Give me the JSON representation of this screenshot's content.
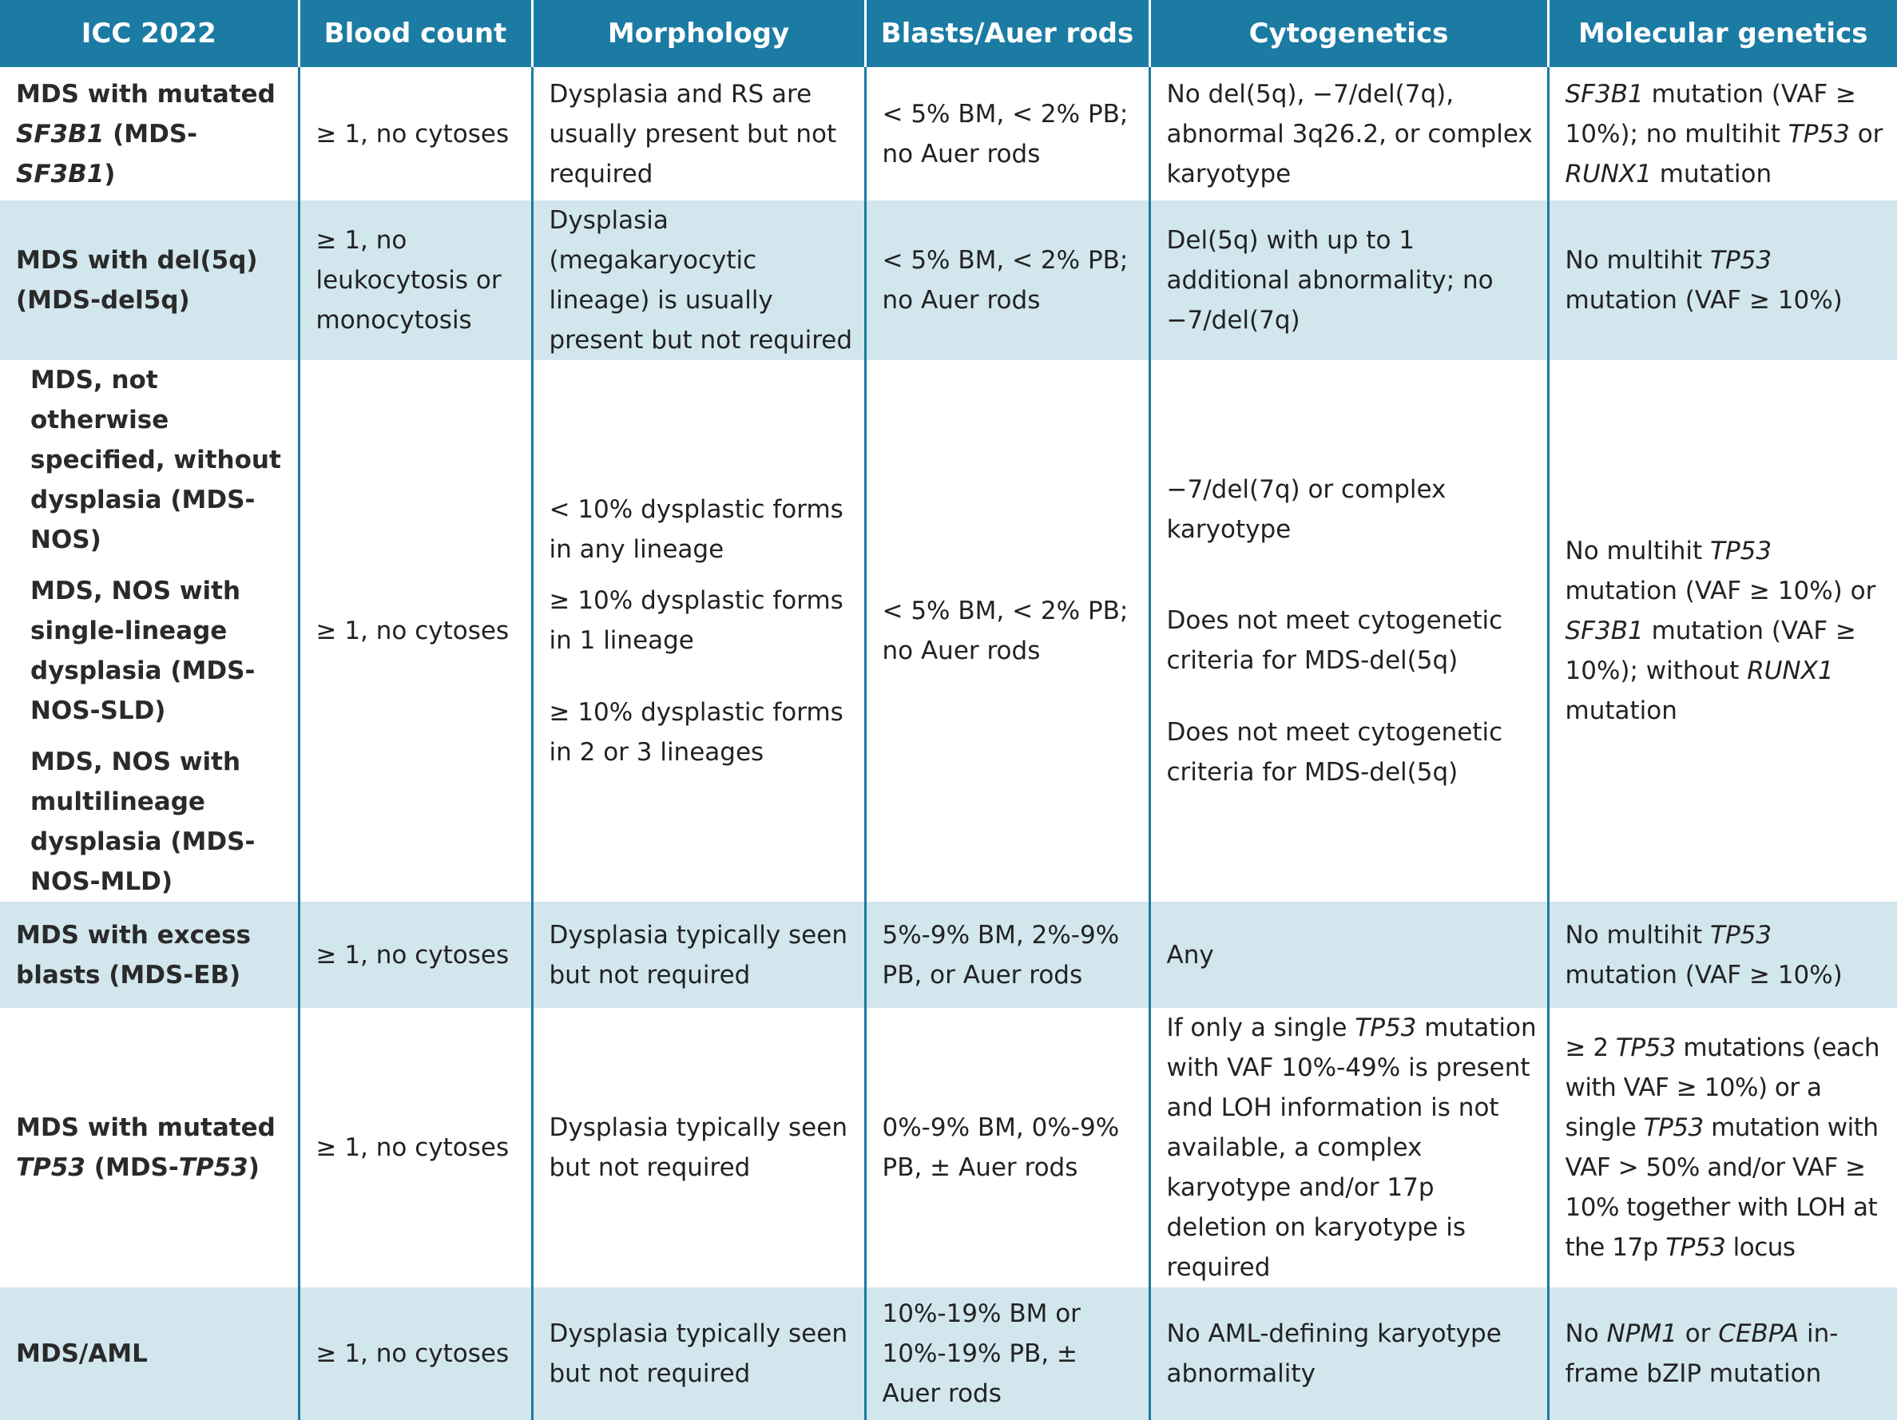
{
  "headers": [
    "ICC 2022",
    "Blood count",
    "Morphology",
    "Blasts/Auer rods",
    "Cytogenetics",
    "Molecular genetics"
  ],
  "rows": {
    "sf3b1": {
      "name_pre": "MDS with mutated ",
      "name_gene": "SF3B1",
      "name_mid": " (MDS-",
      "name_gene2": "SF3B1",
      "name_post": ")",
      "blood": "≥ 1, no cytoses",
      "morph": "Dysplasia and RS are usually present but not required",
      "blasts": "< 5% BM, < 2% PB; no Auer rods",
      "cyto": "No del(5q), −7/del(7q), abnormal 3q26.2, or complex karyotype",
      "mol_g1": "SF3B1",
      "mol_t1": " mutation (VAF ≥ 10%); no multihit ",
      "mol_g2": "TP53",
      "mol_t2": " or ",
      "mol_g3": "RUNX1",
      "mol_t3": " mutation"
    },
    "del5q": {
      "name": "MDS with del(5q) (MDS-del5q)",
      "blood": "≥ 1, no leukocytosis or monocytosis",
      "morph": "Dysplasia (megakaryocytic lineage) is usually present but not required",
      "blasts": "< 5% BM, < 2% PB; no Auer rods",
      "cyto": "Del(5q) with up to 1 additional abnormality; no −7/del(7q)",
      "mol_t1": "No multihit ",
      "mol_g1": "TP53",
      "mol_t2": " mutation (VAF ≥ 10%)"
    },
    "nos": {
      "name1": "MDS, not otherwise specified, without dysplasia (MDS-NOS)",
      "name2": "MDS, NOS with single-lineage dysplasia (MDS-NOS-SLD)",
      "name3": "MDS, NOS with multilineage dysplasia (MDS-NOS-MLD)",
      "blood": "≥ 1, no cytoses",
      "morph1": "< 10% dysplastic forms in any lineage",
      "morph2": "≥ 10% dysplastic forms in 1 lineage",
      "morph3": "≥ 10% dysplastic forms in 2 or 3 lineages",
      "blasts": "< 5% BM, < 2% PB; no Auer rods",
      "cyto1": "−7/del(7q) or complex karyotype",
      "cyto2": "Does not meet cytogenetic criteria for MDS-del(5q)",
      "cyto3": "Does not meet cytogenetic criteria for MDS-del(5q)",
      "mol_t1": "No multihit ",
      "mol_g1": "TP53",
      "mol_t2": " mutation (VAF ≥ 10%) or ",
      "mol_g2": "SF3B1",
      "mol_t3": " mutation (VAF ≥ 10%); without ",
      "mol_g3": "RUNX1",
      "mol_t4": " mutation"
    },
    "eb": {
      "name": "MDS with excess blasts (MDS-EB)",
      "blood": "≥ 1, no cytoses",
      "morph": "Dysplasia typically seen but not required",
      "blasts": "5%-9% BM, 2%-9% PB, or Auer rods",
      "cyto": "Any",
      "mol_t1": "No multihit ",
      "mol_g1": "TP53",
      "mol_t2": " mutation (VAF ≥ 10%)"
    },
    "tp53": {
      "name_pre": "MDS with mutated ",
      "name_gene": "TP53",
      "name_mid": " (MDS-",
      "name_gene2": "TP53",
      "name_post": ")",
      "blood": "≥ 1, no cytoses",
      "morph": "Dysplasia typically seen but not required",
      "blasts": "0%-9% BM, 0%-9% PB, ± Auer rods",
      "cyto_t1": "If only a single ",
      "cyto_g1": "TP53",
      "cyto_t2": " mutation with VAF 10%-49% is present and LOH information is not available, a complex karyotype and/or 17p deletion on karyotype is required",
      "mol_t1": "≥ 2 ",
      "mol_g1": "TP53",
      "mol_t2": " mutations (each with VAF ≥ 10%) or a single ",
      "mol_g2": "TP53",
      "mol_t3": " mutation with VAF > 50% and/or VAF ≥ 10% together with LOH at the 17p ",
      "mol_g3": "TP53",
      "mol_t4": " locus"
    },
    "aml": {
      "name": "MDS/AML",
      "blood": "≥ 1, no cytoses",
      "morph": "Dysplasia typically seen but not required",
      "blasts": "10%-19% BM or 10%-19% PB, ± Auer rods",
      "cyto": "No AML-defining karyotype abnormality",
      "mol_t1": "No ",
      "mol_g1": "NPM1",
      "mol_t2": " or ",
      "mol_g2": "CEBPA",
      "mol_t3": " in-frame bZIP mutation"
    }
  },
  "colors": {
    "header_bg": "#1b7ba3",
    "shade_bg": "#d2e6ee",
    "text": "#222222"
  }
}
